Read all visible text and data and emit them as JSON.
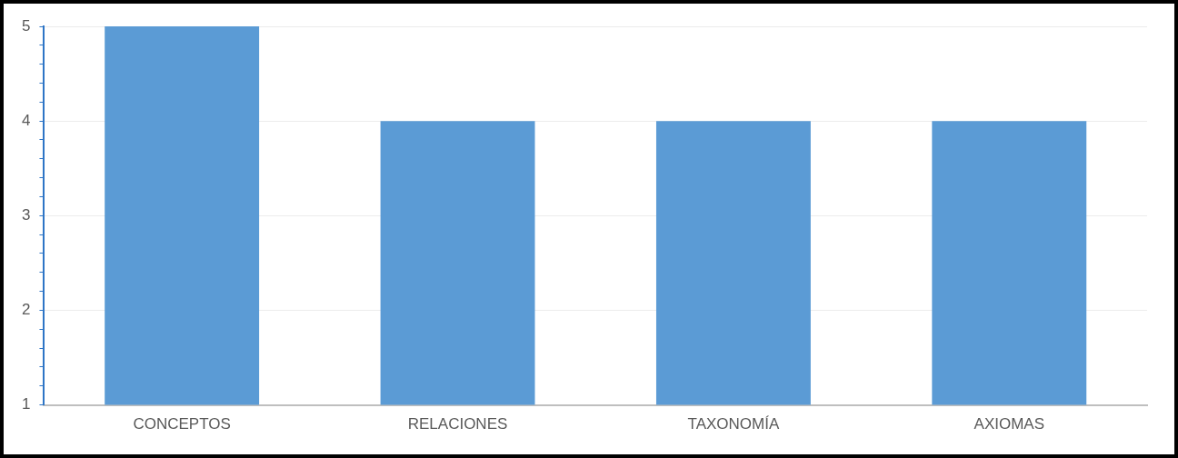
{
  "chart_data": {
    "type": "bar",
    "categories": [
      "CONCEPTOS",
      "RELACIONES",
      "TAXONOMÍA",
      "AXIOMAS"
    ],
    "values": [
      5,
      4,
      4,
      4
    ],
    "color": "#5b9bd5",
    "ylim": [
      1,
      5
    ],
    "yticks": [
      1,
      {
        "value": 1.2,
        "label": null
      },
      {
        "value": 1.4,
        "label": null
      },
      {
        "value": 1.6,
        "label": null
      },
      {
        "value": 1.8,
        "label": null
      },
      2,
      {
        "value": 2.2,
        "label": null
      },
      {
        "value": 2.4,
        "label": null
      },
      {
        "value": 2.6,
        "label": null
      },
      {
        "value": 2.8,
        "label": null
      },
      3,
      {
        "value": 3.2,
        "label": null
      },
      {
        "value": 3.4,
        "label": null
      },
      {
        "value": 3.6,
        "label": null
      },
      {
        "value": 3.8,
        "label": null
      },
      4,
      {
        "value": 4.2,
        "label": null
      },
      {
        "value": 4.4,
        "label": null
      },
      {
        "value": 4.6,
        "label": null
      },
      {
        "value": 4.8,
        "label": null
      },
      5
    ],
    "grid": "y",
    "legend": false
  }
}
